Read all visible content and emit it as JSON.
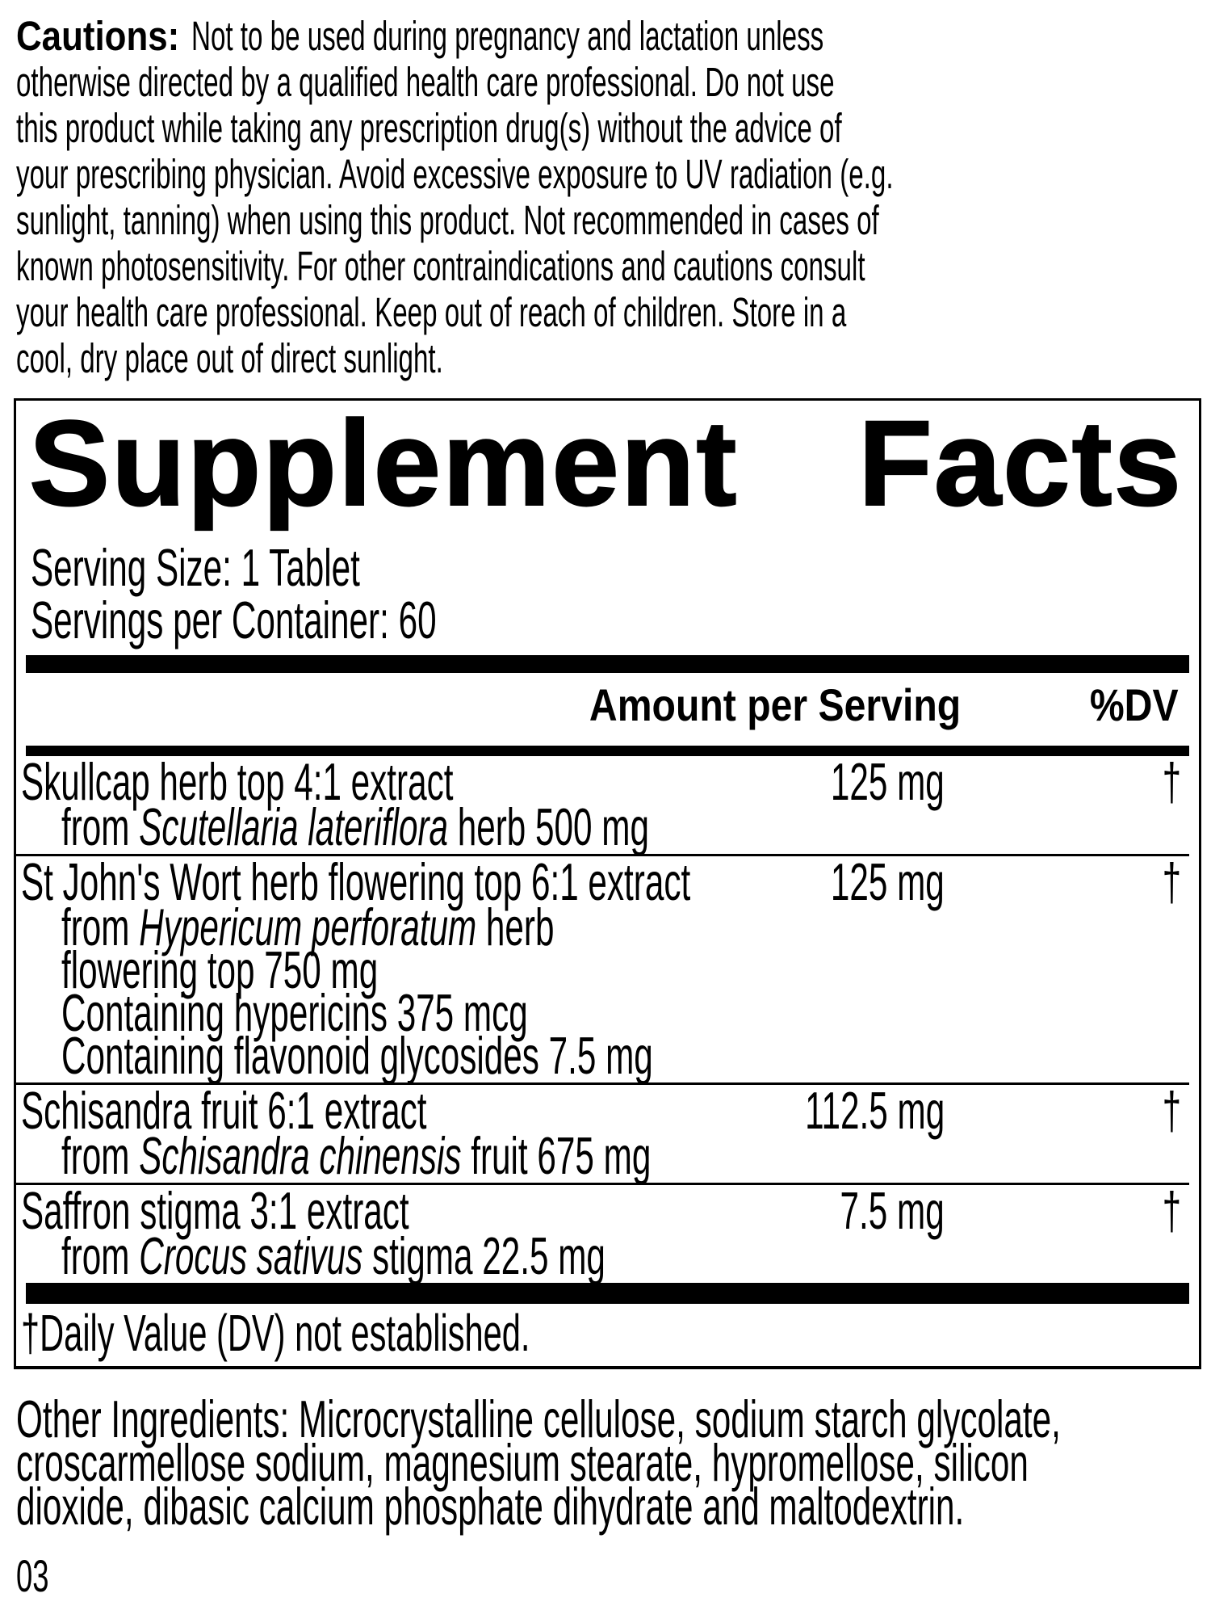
{
  "colors": {
    "text": "#000000",
    "background": "#ffffff"
  },
  "cautions": {
    "lines": [
      {
        "bold": "Cautions:",
        "text": "Not to be used during pregnancy and lactation unless"
      },
      {
        "text": "otherwise directed by a qualified health care professional. Do not use"
      },
      {
        "text": "this product while taking any prescription drug(s) without the advice of"
      },
      {
        "text": "your prescribing physician. Avoid excessive exposure to UV radiation (e.g."
      },
      {
        "text": "sunlight, tanning) when using this product. Not recommended in cases of"
      },
      {
        "text": "known photosensitivity. For other contraindications and cautions consult"
      },
      {
        "text": "your health care professional. Keep out of reach of children. Store in a"
      },
      {
        "text": "cool, dry place out of direct sunlight."
      }
    ]
  },
  "panel": {
    "title_word1": "Supplement",
    "title_word2": "Facts",
    "serving_size": "Serving Size: 1 Tablet",
    "servings_per_container": "Servings per Container: 60",
    "header": {
      "amount": "Amount per Serving",
      "dv": "%DV"
    },
    "rows": [
      {
        "name": "Skullcap herb top 4:1 extract",
        "amount": "125 mg",
        "dv": "†",
        "details": [
          {
            "pre": "from ",
            "italic": "Scutellaria lateriflora",
            "post": " herb 500 mg"
          }
        ]
      },
      {
        "name": "St John's Wort herb flowering top 6:1 extract",
        "amount": "125 mg",
        "dv": "†",
        "details": [
          {
            "pre": "from ",
            "italic": "Hypericum perforatum",
            "post": " herb"
          },
          {
            "pre": "flowering top 750 mg"
          },
          {
            "pre": "Containing hypericins 375 mcg"
          },
          {
            "pre": "Containing flavonoid glycosides 7.5 mg"
          }
        ]
      },
      {
        "name": "Schisandra fruit 6:1 extract",
        "amount": "112.5 mg",
        "dv": "†",
        "details": [
          {
            "pre": "from ",
            "italic": "Schisandra chinensis",
            "post": " fruit 675 mg"
          }
        ]
      },
      {
        "name": "Saffron stigma 3:1 extract",
        "amount": "7.5 mg",
        "dv": "†",
        "details": [
          {
            "pre": "from ",
            "italic": "Crocus sativus",
            "post": " stigma 22.5 mg"
          }
        ]
      }
    ],
    "footnote": "†Daily Value (DV) not established."
  },
  "other_ingredients": {
    "lines": [
      "Other Ingredients: Microcrystalline cellulose, sodium starch glycolate,",
      "croscarmellose sodium, magnesium stearate, hypromellose, silicon",
      "dioxide, dibasic calcium phosphate dihydrate and maltodextrin."
    ]
  },
  "page_number": "03"
}
